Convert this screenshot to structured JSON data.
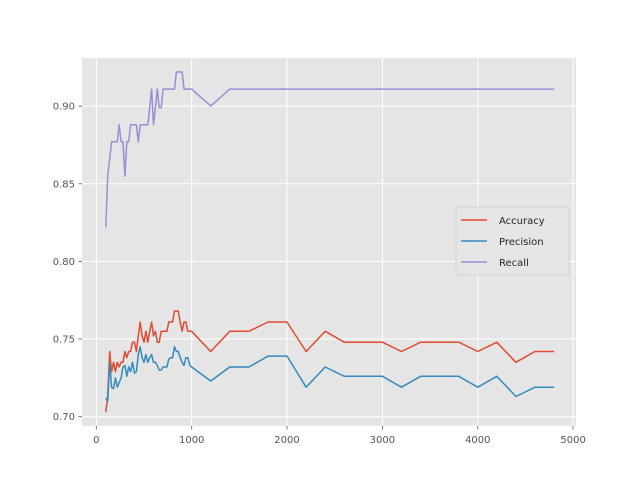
{
  "chart_data": {
    "type": "line",
    "title": "",
    "xlabel": "",
    "ylabel": "",
    "xlim": [
      -150,
      5030
    ],
    "ylim": [
      0.694,
      0.931
    ],
    "grid": true,
    "style": "ggplot",
    "legend_position": "center-right",
    "x_ticks": [
      0,
      1000,
      2000,
      3000,
      4000,
      5000
    ],
    "x_tick_labels": [
      "0",
      "1000",
      "2000",
      "3000",
      "4000",
      "5000"
    ],
    "y_ticks": [
      0.7,
      0.75,
      0.8,
      0.85,
      0.9
    ],
    "y_tick_labels": [
      "0.70",
      "0.75",
      "0.80",
      "0.85",
      "0.90"
    ],
    "series": [
      {
        "name": "Accuracy",
        "color": "#E24A33",
        "x": [
          100,
          120,
          140,
          160,
          180,
          200,
          220,
          240,
          260,
          280,
          300,
          320,
          340,
          360,
          380,
          400,
          420,
          440,
          460,
          480,
          500,
          520,
          540,
          560,
          580,
          600,
          620,
          640,
          660,
          680,
          700,
          720,
          740,
          760,
          780,
          800,
          820,
          840,
          860,
          880,
          900,
          920,
          940,
          960,
          980,
          1000,
          1200,
          1400,
          1600,
          1800,
          2000,
          2200,
          2400,
          2600,
          2800,
          3000,
          3200,
          3400,
          3600,
          3800,
          4000,
          4200,
          4400,
          4600,
          4800
        ],
        "y": [
          0.703,
          0.713,
          0.742,
          0.729,
          0.735,
          0.729,
          0.735,
          0.732,
          0.735,
          0.735,
          0.742,
          0.738,
          0.742,
          0.742,
          0.748,
          0.748,
          0.742,
          0.752,
          0.761,
          0.752,
          0.748,
          0.755,
          0.748,
          0.755,
          0.761,
          0.752,
          0.755,
          0.748,
          0.748,
          0.755,
          0.755,
          0.755,
          0.755,
          0.761,
          0.761,
          0.761,
          0.768,
          0.768,
          0.768,
          0.761,
          0.755,
          0.761,
          0.761,
          0.755,
          0.755,
          0.755,
          0.742,
          0.755,
          0.755,
          0.761,
          0.761,
          0.742,
          0.755,
          0.748,
          0.748,
          0.748,
          0.742,
          0.748,
          0.748,
          0.748,
          0.742,
          0.748,
          0.735,
          0.742,
          0.742
        ]
      },
      {
        "name": "Precision",
        "color": "#348ABD",
        "x": [
          100,
          120,
          140,
          160,
          180,
          200,
          220,
          240,
          260,
          280,
          300,
          320,
          340,
          360,
          380,
          400,
          420,
          440,
          460,
          480,
          500,
          520,
          540,
          560,
          580,
          600,
          620,
          640,
          660,
          680,
          700,
          720,
          740,
          760,
          780,
          800,
          820,
          840,
          860,
          880,
          900,
          920,
          940,
          960,
          980,
          1000,
          1200,
          1400,
          1600,
          1800,
          2000,
          2200,
          2400,
          2600,
          2800,
          3000,
          3200,
          3400,
          3600,
          3800,
          4000,
          4200,
          4400,
          4600,
          4800
        ],
        "y": [
          0.712,
          0.71,
          0.735,
          0.719,
          0.718,
          0.725,
          0.719,
          0.722,
          0.725,
          0.732,
          0.733,
          0.726,
          0.732,
          0.729,
          0.735,
          0.728,
          0.729,
          0.74,
          0.745,
          0.738,
          0.735,
          0.74,
          0.735,
          0.738,
          0.74,
          0.735,
          0.735,
          0.733,
          0.73,
          0.73,
          0.732,
          0.732,
          0.732,
          0.737,
          0.738,
          0.738,
          0.745,
          0.742,
          0.742,
          0.738,
          0.735,
          0.733,
          0.738,
          0.738,
          0.733,
          0.732,
          0.723,
          0.732,
          0.732,
          0.739,
          0.739,
          0.719,
          0.732,
          0.726,
          0.726,
          0.726,
          0.719,
          0.726,
          0.726,
          0.726,
          0.719,
          0.726,
          0.713,
          0.719,
          0.719
        ]
      },
      {
        "name": "Recall",
        "color": "#988ED5",
        "x": [
          100,
          120,
          140,
          160,
          180,
          200,
          220,
          240,
          260,
          280,
          300,
          320,
          340,
          360,
          380,
          400,
          420,
          440,
          460,
          480,
          500,
          520,
          540,
          560,
          580,
          600,
          620,
          640,
          660,
          680,
          700,
          720,
          740,
          760,
          780,
          800,
          820,
          840,
          860,
          880,
          900,
          920,
          940,
          960,
          980,
          1000,
          1200,
          1400,
          1600,
          1800,
          2000,
          2200,
          2400,
          2600,
          2800,
          3000,
          3200,
          3400,
          3600,
          3800,
          4000,
          4200,
          4400,
          4600,
          4800
        ],
        "y": [
          0.822,
          0.855,
          0.866,
          0.877,
          0.877,
          0.877,
          0.877,
          0.888,
          0.877,
          0.877,
          0.855,
          0.877,
          0.877,
          0.888,
          0.888,
          0.888,
          0.888,
          0.877,
          0.888,
          0.888,
          0.888,
          0.888,
          0.888,
          0.899,
          0.911,
          0.888,
          0.899,
          0.911,
          0.899,
          0.899,
          0.911,
          0.911,
          0.911,
          0.911,
          0.911,
          0.911,
          0.911,
          0.922,
          0.922,
          0.922,
          0.922,
          0.911,
          0.911,
          0.911,
          0.911,
          0.911,
          0.9,
          0.911,
          0.911,
          0.911,
          0.911,
          0.911,
          0.911,
          0.911,
          0.911,
          0.911,
          0.911,
          0.911,
          0.911,
          0.911,
          0.911,
          0.911,
          0.911,
          0.911,
          0.911
        ]
      }
    ]
  }
}
